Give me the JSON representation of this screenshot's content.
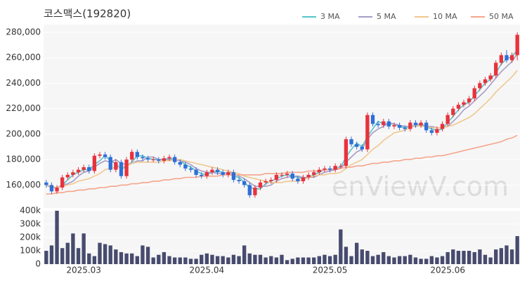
{
  "chart_data": {
    "type": "candlestick",
    "title": "코스맥스(192820)",
    "watermark": "enViewV.com",
    "legend": "top-right",
    "categories": [
      null,
      null,
      null,
      null,
      null,
      null,
      null,
      "2025.03",
      null,
      null,
      null,
      null,
      null,
      null,
      null,
      null,
      null,
      null,
      null,
      null,
      null,
      null,
      null,
      null,
      null,
      null,
      null,
      null,
      null,
      null,
      "2025.04",
      null,
      null,
      null,
      null,
      null,
      null,
      null,
      null,
      null,
      null,
      null,
      null,
      null,
      null,
      null,
      null,
      null,
      null,
      null,
      null,
      null,
      null,
      "2025.05",
      null,
      null,
      null,
      null,
      null,
      null,
      null,
      null,
      null,
      null,
      null,
      null,
      null,
      null,
      null,
      null,
      null,
      null,
      null,
      null,
      null,
      "2025.06",
      null,
      null,
      null,
      null,
      null,
      null,
      null,
      null,
      null,
      null,
      null,
      null,
      null
    ],
    "open": [
      162000,
      160000,
      155000,
      158000,
      166000,
      168000,
      170000,
      172000,
      174000,
      171000,
      183000,
      184000,
      182000,
      172000,
      178000,
      167000,
      180000,
      186000,
      182000,
      181000,
      180000,
      180000,
      179000,
      181000,
      182000,
      178000,
      176000,
      173000,
      172000,
      168000,
      167000,
      170000,
      172000,
      170000,
      168000,
      170000,
      164000,
      163000,
      160000,
      152000,
      158000,
      162000,
      163000,
      164000,
      168000,
      168000,
      169000,
      165000,
      163000,
      166000,
      168000,
      170000,
      172000,
      173000,
      172000,
      175000,
      175000,
      196000,
      192000,
      190000,
      188000,
      215000,
      208000,
      207000,
      210000,
      206000,
      207000,
      205000,
      204000,
      209000,
      207000,
      209000,
      203000,
      201000,
      204000,
      208000,
      215000,
      220000,
      223000,
      225000,
      228000,
      236000,
      240000,
      243000,
      246000,
      256000,
      262000,
      258000,
      262000
    ],
    "high": [
      164000,
      162000,
      160000,
      168000,
      170000,
      172000,
      174000,
      176000,
      176000,
      185000,
      186000,
      186000,
      184000,
      180000,
      180000,
      182000,
      188000,
      188000,
      184000,
      183000,
      182000,
      182000,
      183000,
      184000,
      184000,
      180000,
      178000,
      175000,
      174000,
      170000,
      172000,
      174000,
      174000,
      172000,
      172000,
      172000,
      166000,
      165000,
      162000,
      160000,
      164000,
      165000,
      166000,
      170000,
      170000,
      171000,
      171000,
      167000,
      168000,
      170000,
      172000,
      174000,
      175000,
      175000,
      177000,
      177000,
      198000,
      198000,
      194000,
      192000,
      217000,
      217000,
      210000,
      212000,
      212000,
      209000,
      209000,
      207000,
      211000,
      211000,
      211000,
      211000,
      205000,
      206000,
      210000,
      217000,
      222000,
      225000,
      227000,
      230000,
      238000,
      242000,
      245000,
      248000,
      258000,
      264000,
      266000,
      264000,
      280000
    ],
    "low": [
      158000,
      153000,
      153000,
      156000,
      164000,
      166000,
      168000,
      170000,
      169000,
      169000,
      181000,
      180000,
      170000,
      170000,
      165000,
      165000,
      178000,
      180000,
      179000,
      178000,
      178000,
      177000,
      177000,
      179000,
      176000,
      174000,
      171000,
      170000,
      166000,
      165000,
      165000,
      168000,
      168000,
      166000,
      166000,
      162000,
      161000,
      158000,
      150000,
      150000,
      156000,
      160000,
      161000,
      162000,
      166000,
      166000,
      163000,
      161000,
      161000,
      164000,
      166000,
      168000,
      170000,
      170000,
      170000,
      173000,
      173000,
      190000,
      188000,
      186000,
      186000,
      206000,
      205000,
      205000,
      204000,
      204000,
      203000,
      202000,
      202000,
      205000,
      205000,
      201000,
      199000,
      199000,
      202000,
      206000,
      213000,
      218000,
      221000,
      223000,
      226000,
      234000,
      238000,
      241000,
      244000,
      254000,
      256000,
      256000,
      258000
    ],
    "close": [
      160000,
      155000,
      158000,
      166000,
      168000,
      170000,
      172000,
      174000,
      171000,
      183000,
      184000,
      182000,
      172000,
      178000,
      167000,
      180000,
      186000,
      182000,
      181000,
      180000,
      180000,
      179000,
      181000,
      182000,
      178000,
      176000,
      173000,
      172000,
      168000,
      167000,
      170000,
      172000,
      170000,
      168000,
      170000,
      164000,
      163000,
      160000,
      152000,
      158000,
      162000,
      163000,
      164000,
      168000,
      168000,
      169000,
      165000,
      163000,
      166000,
      168000,
      170000,
      172000,
      173000,
      172000,
      175000,
      175000,
      196000,
      192000,
      190000,
      188000,
      215000,
      208000,
      207000,
      210000,
      206000,
      207000,
      205000,
      204000,
      209000,
      207000,
      209000,
      203000,
      201000,
      204000,
      208000,
      215000,
      220000,
      223000,
      225000,
      228000,
      236000,
      240000,
      243000,
      246000,
      256000,
      262000,
      258000,
      262000,
      278000
    ],
    "up_color": "#e8323c",
    "down_color": "#2f6fd6",
    "series": [
      {
        "name": "3 MA",
        "color": "#55c4c8",
        "values": [
          160000,
          158000,
          158000,
          160000,
          164000,
          168000,
          170000,
          172000,
          172000,
          176000,
          179000,
          183000,
          179000,
          177000,
          172000,
          175000,
          178000,
          183000,
          183000,
          181000,
          180000,
          180000,
          180000,
          181000,
          180000,
          179000,
          176000,
          174000,
          171000,
          169000,
          168000,
          170000,
          171000,
          170000,
          169000,
          167000,
          166000,
          162000,
          158000,
          157000,
          157000,
          161000,
          163000,
          165000,
          167000,
          168000,
          167000,
          166000,
          165000,
          166000,
          168000,
          170000,
          172000,
          172000,
          173000,
          174000,
          182000,
          188000,
          193000,
          190000,
          198000,
          204000,
          210000,
          208000,
          208000,
          208000,
          206000,
          205000,
          206000,
          207000,
          208000,
          206000,
          204000,
          203000,
          204000,
          209000,
          214000,
          219000,
          223000,
          225000,
          230000,
          235000,
          240000,
          243000,
          248000,
          255000,
          259000,
          261000,
          266000
        ]
      },
      {
        "name": "5 MA",
        "color": "#a89cc8",
        "values": [
          160000,
          158000,
          158000,
          160000,
          161000,
          163000,
          167000,
          170000,
          171000,
          174000,
          177000,
          179000,
          178000,
          180000,
          177000,
          176000,
          177000,
          179000,
          179000,
          182000,
          182000,
          180000,
          180000,
          180000,
          180000,
          179000,
          178000,
          176000,
          173000,
          171000,
          170000,
          170000,
          169000,
          169000,
          170000,
          169000,
          167000,
          165000,
          162000,
          159000,
          159000,
          159000,
          160000,
          163000,
          165000,
          166000,
          167000,
          167000,
          166000,
          166000,
          166000,
          168000,
          170000,
          171000,
          172000,
          173000,
          178000,
          182000,
          186000,
          188000,
          196000,
          201000,
          204000,
          206000,
          209000,
          208000,
          207000,
          206000,
          206000,
          206000,
          207000,
          206000,
          206000,
          205000,
          205000,
          206000,
          210000,
          214000,
          219000,
          222000,
          226000,
          230000,
          234000,
          239000,
          244000,
          249000,
          253000,
          257000,
          263000
        ]
      },
      {
        "name": "10 MA",
        "color": "#f0c78e",
        "values": [
          160000,
          159000,
          158000,
          159000,
          160000,
          161000,
          163000,
          164000,
          165000,
          167000,
          169000,
          172000,
          173000,
          174000,
          174000,
          175000,
          177000,
          178000,
          178000,
          178000,
          178000,
          178000,
          179000,
          179000,
          180000,
          180000,
          179000,
          178000,
          177000,
          176000,
          175000,
          174000,
          173000,
          172000,
          171000,
          170000,
          169000,
          167000,
          166000,
          165000,
          164000,
          163000,
          162000,
          162000,
          162000,
          163000,
          163000,
          163000,
          164000,
          166000,
          167000,
          168000,
          168000,
          169000,
          169000,
          170000,
          173000,
          176000,
          178000,
          180000,
          184000,
          188000,
          191000,
          195000,
          198000,
          201000,
          202000,
          203000,
          205000,
          207000,
          206000,
          206000,
          205000,
          205000,
          205000,
          206000,
          207000,
          209000,
          211000,
          213000,
          216000,
          220000,
          224000,
          228000,
          233000,
          237000,
          241000,
          245000,
          250000
        ]
      },
      {
        "name": "50 MA",
        "color": "#f4a58c",
        "values": [
          153000,
          153000,
          154000,
          154000,
          155000,
          155000,
          156000,
          156000,
          157000,
          157000,
          158000,
          158000,
          159000,
          159000,
          160000,
          160000,
          161000,
          161000,
          162000,
          162000,
          163000,
          163000,
          164000,
          164000,
          165000,
          165000,
          166000,
          166000,
          166000,
          167000,
          167000,
          167000,
          167000,
          168000,
          168000,
          168000,
          168000,
          168000,
          168000,
          168000,
          168000,
          169000,
          169000,
          169000,
          169000,
          170000,
          170000,
          170000,
          170000,
          171000,
          171000,
          171000,
          172000,
          172000,
          173000,
          173000,
          174000,
          174000,
          175000,
          175000,
          176000,
          177000,
          177000,
          178000,
          178000,
          179000,
          179000,
          180000,
          180000,
          181000,
          181000,
          182000,
          182000,
          183000,
          183000,
          184000,
          185000,
          186000,
          187000,
          188000,
          189000,
          190000,
          191000,
          192000,
          193000,
          194000,
          196000,
          197000,
          199000
        ]
      }
    ],
    "ylim": [
      142000,
      286000
    ],
    "yticks": [
      {
        "value": 160000,
        "label": "160,000"
      },
      {
        "value": 180000,
        "label": "180,000"
      },
      {
        "value": 200000,
        "label": "200,000"
      },
      {
        "value": 220000,
        "label": "220,000"
      },
      {
        "value": 240000,
        "label": "240,000"
      },
      {
        "value": 260000,
        "label": "260,000"
      },
      {
        "value": 280000,
        "label": "280,000"
      }
    ],
    "volume": {
      "color": "#474b6e",
      "values": [
        100000,
        140000,
        400000,
        120000,
        160000,
        230000,
        120000,
        230000,
        80000,
        60000,
        160000,
        150000,
        140000,
        110000,
        90000,
        80000,
        80000,
        60000,
        140000,
        130000,
        50000,
        70000,
        90000,
        60000,
        50000,
        50000,
        50000,
        40000,
        40000,
        70000,
        80000,
        70000,
        60000,
        60000,
        50000,
        70000,
        60000,
        140000,
        80000,
        70000,
        70000,
        50000,
        60000,
        50000,
        70000,
        30000,
        40000,
        50000,
        50000,
        50000,
        50000,
        60000,
        70000,
        60000,
        70000,
        260000,
        130000,
        60000,
        160000,
        110000,
        100000,
        60000,
        70000,
        90000,
        60000,
        50000,
        60000,
        60000,
        70000,
        50000,
        40000,
        40000,
        60000,
        50000,
        60000,
        90000,
        110000,
        100000,
        100000,
        100000,
        90000,
        110000,
        70000,
        50000,
        110000,
        120000,
        140000,
        110000,
        210000
      ],
      "ylim": [
        0,
        400000
      ],
      "yticks": [
        0,
        {
          "value": 100000,
          "label": "100k"
        },
        {
          "value": 200000,
          "label": "200k"
        },
        {
          "value": 300000,
          "label": "300k"
        },
        {
          "value": 400000,
          "label": "400k"
        }
      ]
    }
  }
}
